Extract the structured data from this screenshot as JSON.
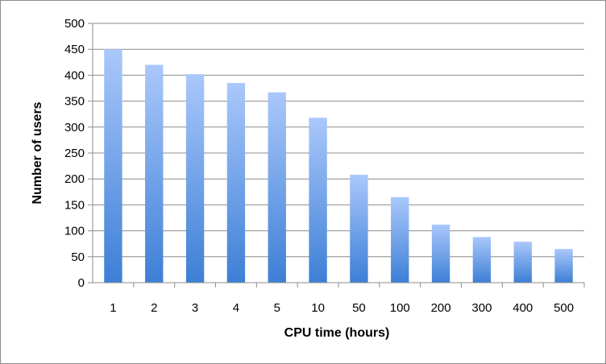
{
  "chart_data": {
    "type": "bar",
    "title": "",
    "xlabel": "CPU time (hours)",
    "ylabel": "Number of users",
    "categories": [
      "1",
      "2",
      "3",
      "4",
      "5",
      "10",
      "50",
      "100",
      "200",
      "300",
      "400",
      "500"
    ],
    "values": [
      450,
      420,
      402,
      385,
      367,
      318,
      208,
      165,
      112,
      88,
      79,
      65
    ],
    "ylim": [
      0,
      500
    ],
    "yticks": [
      "0",
      "50",
      "100",
      "150",
      "200",
      "250",
      "300",
      "350",
      "400",
      "450",
      "500"
    ],
    "grid": true,
    "legend": "none",
    "bar_color_top": "#aac8fb",
    "bar_color_bottom": "#3d7fd6",
    "grid_color": "#8c8c8c"
  }
}
